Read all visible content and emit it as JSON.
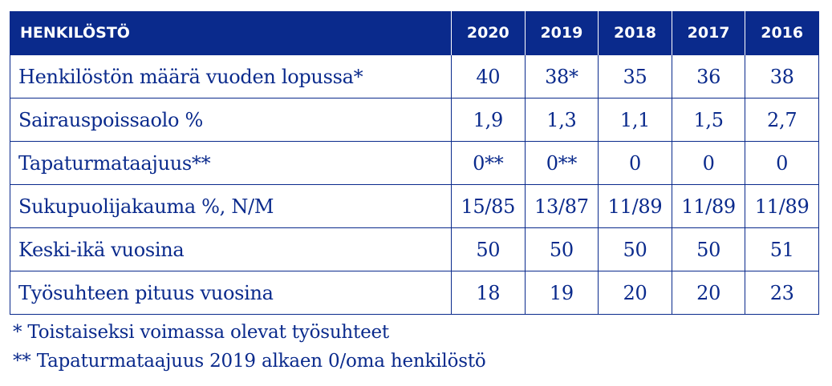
{
  "table": {
    "header": {
      "title": "HENKILÖSTÖ",
      "years": [
        "2020",
        "2019",
        "2018",
        "2017",
        "2016"
      ]
    },
    "rows": [
      {
        "label": "Henkilöstön määrä vuoden lopussa*",
        "values": [
          "40",
          "38*",
          "35",
          "36",
          "38"
        ]
      },
      {
        "label": "Sairauspoissaolo %",
        "values": [
          "1,9",
          "1,3",
          "1,1",
          "1,5",
          "2,7"
        ]
      },
      {
        "label": "Tapaturmataajuus**",
        "values": [
          "0**",
          "0**",
          "0",
          "0",
          "0"
        ]
      },
      {
        "label": "Sukupuolijakauma %, N/M",
        "values": [
          "15/85",
          "13/87",
          "11/89",
          "11/89",
          "11/89"
        ]
      },
      {
        "label": "Keski-ikä vuosina",
        "values": [
          "50",
          "50",
          "50",
          "50",
          "51"
        ]
      },
      {
        "label": "Työsuhteen pituus vuosina",
        "values": [
          "18",
          "19",
          "20",
          "20",
          "23"
        ]
      }
    ]
  },
  "footnotes": [
    "* Toistaiseksi voimassa olevat työsuhteet",
    "** Tapaturmataajuus 2019 alkaen 0/oma henkilöstö"
  ],
  "colors": {
    "accent": "#0a2a8c",
    "background": "#ffffff"
  }
}
